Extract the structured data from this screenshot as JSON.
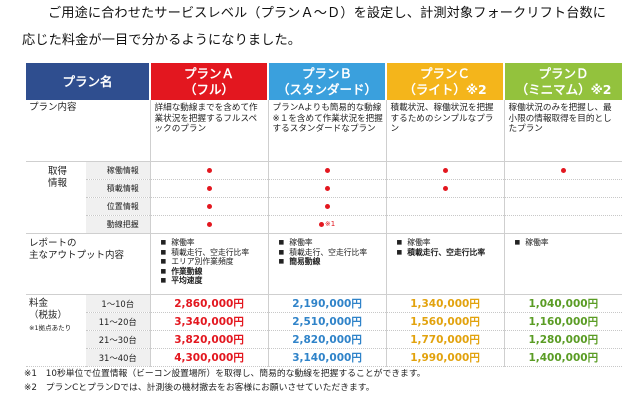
{
  "intro": {
    "line1": "ご用途に合わせたサービスレベル（プランＡ～Ｄ）を設定し、計測対象フォークリフト台数に",
    "line2": "応じた料金が一目で分かるようになりました。"
  },
  "table": {
    "header": {
      "name_col": "プラン名",
      "plans": [
        {
          "line1": "プランＡ",
          "line2": "（フル）"
        },
        {
          "line1": "プランＢ",
          "line2": "（スタンダード）"
        },
        {
          "line1": "プランＣ",
          "line2": "（ライト）※2"
        },
        {
          "line1": "プランＤ",
          "line2": "（ミニマム）※2"
        }
      ]
    },
    "content_row": {
      "label": "プラン内容",
      "plans": [
        "詳細な動線までを含めて作業状況を把握するフルスペックのプラン",
        "プランAよりも簡易的な動線※１を含めて作業状況を把握するスタンダードなプラン",
        "積載状況、稼働状況を把握するためのシンプルなプラン",
        "稼働状況のみを把握し、最小限の情報取得を目的としたプラン"
      ]
    },
    "acquisition": {
      "label_line1": "取得",
      "label_line2": "情報",
      "rows": [
        {
          "name": "稼働情報",
          "marks": [
            "●",
            "●",
            "●",
            "●"
          ]
        },
        {
          "name": "積載情報",
          "marks": [
            "●",
            "●",
            "●",
            ""
          ]
        },
        {
          "name": "位置情報",
          "marks": [
            "●",
            "●",
            "",
            ""
          ]
        },
        {
          "name": "動線把握",
          "marks": [
            "●",
            "●※１",
            "",
            ""
          ]
        }
      ]
    },
    "outputs": {
      "label_line1": "レポートの",
      "label_line2": "主なアウトプット内容",
      "plan_a": [
        "稼働率",
        "積載走行、空走行比率",
        "エリア別作業頻度",
        "作業動線",
        "平均速度"
      ],
      "plan_b": [
        "稼働率",
        "積載走行、空走行比率",
        "簡易動線"
      ],
      "plan_c": [
        "稼働率",
        "積載走行、空走行比率"
      ],
      "plan_d": [
        "稼働率"
      ]
    },
    "pricing": {
      "label_line1": "料金",
      "label_line2": "（税抜）",
      "label_note": "※1拠点あたり",
      "rows": [
        {
          "range": "1〜10台",
          "prices": [
            "2,860,000円",
            "2,190,000円",
            "1,340,000円",
            "1,040,000円"
          ]
        },
        {
          "range": "11〜20台",
          "prices": [
            "3,340,000円",
            "2,510,000円",
            "1,560,000円",
            "1,160,000円"
          ]
        },
        {
          "range": "21〜30台",
          "prices": [
            "3,820,000円",
            "2,820,000円",
            "1,770,000円",
            "1,280,000円"
          ]
        },
        {
          "range": "31〜40台",
          "prices": [
            "4,300,000円",
            "3,140,000円",
            "1,990,000円",
            "1,400,000円"
          ]
        }
      ]
    }
  },
  "footnotes": [
    "※1　10秒単位で位置情報（ビーコン設置場所）を取得し、簡易的な動線を把握することができます。",
    "※2　プランCとプランDでは、計測後の機材撤去をお客様にお願いさせていただきます。"
  ],
  "colors": {
    "plan_a": "#e3171f",
    "plan_b": "#3aa0dd",
    "plan_c": "#f4b51b",
    "plan_d": "#93c23d",
    "header": "#2f4e8f"
  }
}
